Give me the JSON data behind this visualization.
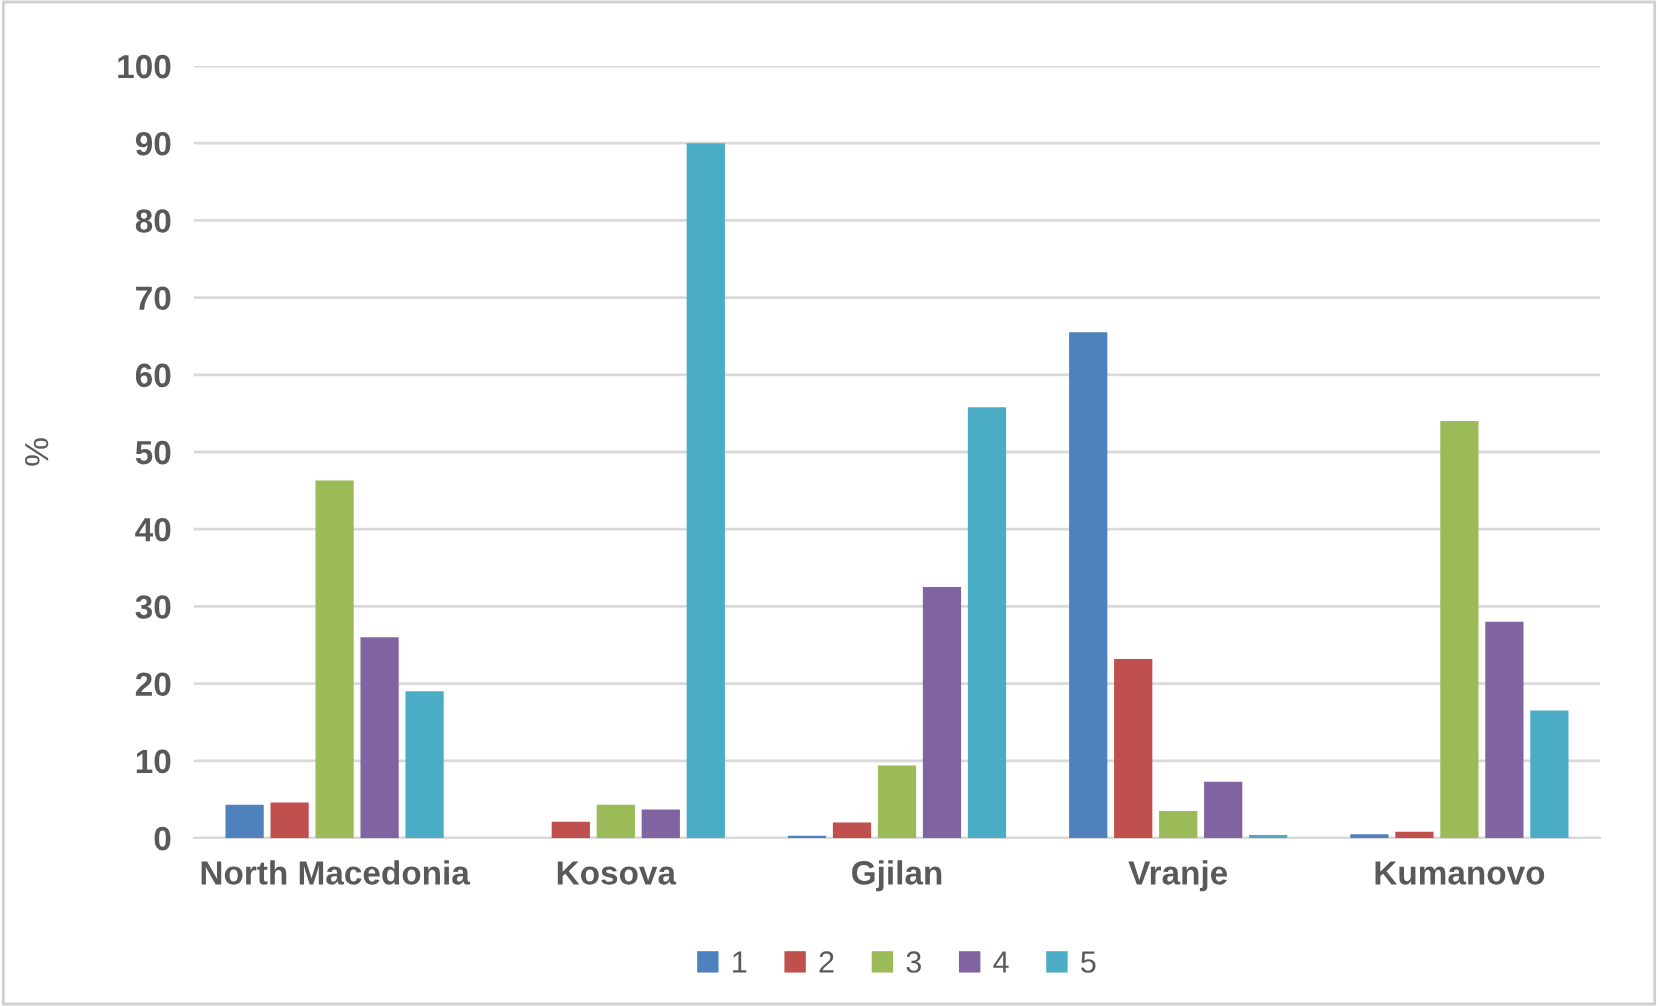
{
  "chart_data": {
    "type": "bar",
    "ylabel": "%",
    "categories": [
      "North Macedonia",
      "Kosova",
      "Gjilan",
      "Vranje",
      "Kumanovo"
    ],
    "series": [
      {
        "name": "1",
        "color": "#4f81bd",
        "values": [
          4.3,
          0,
          0.3,
          65.5,
          0.5
        ]
      },
      {
        "name": "2",
        "color": "#c0504d",
        "values": [
          4.6,
          2.1,
          2,
          23.2,
          0.8
        ]
      },
      {
        "name": "3",
        "color": "#9bbb59",
        "values": [
          46.3,
          4.3,
          9.4,
          3.5,
          54
        ]
      },
      {
        "name": "4",
        "color": "#8064a2",
        "values": [
          26,
          3.7,
          32.5,
          7.3,
          28
        ]
      },
      {
        "name": "5",
        "color": "#4bacc6",
        "values": [
          19,
          90,
          55.8,
          0.4,
          16.5
        ]
      }
    ],
    "ylim": [
      0,
      100
    ],
    "yticks": [
      0,
      10,
      20,
      30,
      40,
      50,
      60,
      70,
      80,
      90,
      100
    ],
    "grid": "y",
    "legend": "bottom"
  }
}
